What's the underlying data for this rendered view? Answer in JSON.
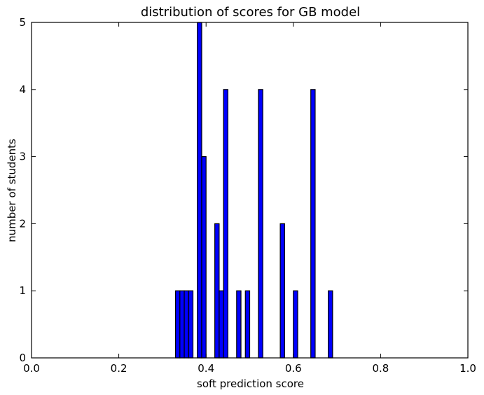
{
  "chart_data": {
    "type": "bar",
    "title": "distribution of scores for GB model",
    "xlabel": "soft prediction score",
    "ylabel": "number of students",
    "xlim": [
      0.0,
      1.0
    ],
    "ylim": [
      0,
      5
    ],
    "xticks": [
      "0.0",
      "0.2",
      "0.4",
      "0.6",
      "0.8",
      "1.0"
    ],
    "yticks": [
      "0",
      "1",
      "2",
      "3",
      "4",
      "5"
    ],
    "bin_width": 0.01,
    "bars": [
      {
        "x": 0.33,
        "count": 1
      },
      {
        "x": 0.34,
        "count": 1
      },
      {
        "x": 0.35,
        "count": 1
      },
      {
        "x": 0.36,
        "count": 1
      },
      {
        "x": 0.38,
        "count": 5
      },
      {
        "x": 0.39,
        "count": 3
      },
      {
        "x": 0.42,
        "count": 2
      },
      {
        "x": 0.43,
        "count": 1
      },
      {
        "x": 0.44,
        "count": 4
      },
      {
        "x": 0.47,
        "count": 1
      },
      {
        "x": 0.49,
        "count": 1
      },
      {
        "x": 0.52,
        "count": 4
      },
      {
        "x": 0.57,
        "count": 2
      },
      {
        "x": 0.6,
        "count": 1
      },
      {
        "x": 0.64,
        "count": 4
      },
      {
        "x": 0.68,
        "count": 1
      }
    ],
    "bar_color": "#0000ff",
    "edge_color": "#000000",
    "grid": false,
    "legend": "none"
  }
}
